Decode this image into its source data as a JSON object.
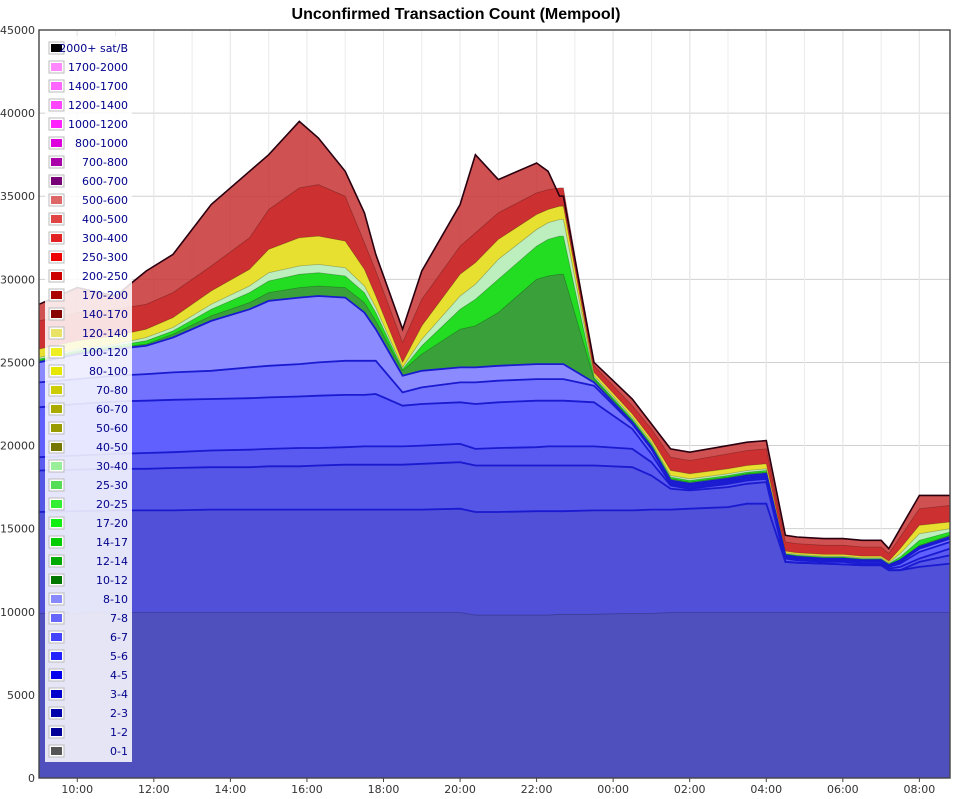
{
  "chart_data": {
    "type": "area",
    "title": "Unconfirmed Transaction Count (Mempool)",
    "xlabel": "",
    "ylabel": "",
    "ylim": [
      0,
      45000
    ],
    "y_ticks": [
      "0",
      "5000",
      "10000",
      "15000",
      "20000",
      "25000",
      "30000",
      "35000",
      "40000",
      "45000"
    ],
    "x_tick_labels": [
      "10:00",
      "12:00",
      "14:00",
      "16:00",
      "18:00",
      "20:00",
      "22:00",
      "00:00",
      "02:00",
      "04:00",
      "06:00",
      "08:00"
    ],
    "grid": true,
    "legend_position": "top-left",
    "legend": [
      {
        "label": "2000+ sat/B",
        "color": "#000000"
      },
      {
        "label": "1700-2000",
        "color": "#ff88ff"
      },
      {
        "label": "1400-1700",
        "color": "#ff66ff"
      },
      {
        "label": "1200-1400",
        "color": "#ff44ff"
      },
      {
        "label": "1000-1200",
        "color": "#ff22ff"
      },
      {
        "label": "800-1000",
        "color": "#dd00dd"
      },
      {
        "label": "700-800",
        "color": "#aa00aa"
      },
      {
        "label": "600-700",
        "color": "#770077"
      },
      {
        "label": "500-600",
        "color": "#dd6666"
      },
      {
        "label": "400-500",
        "color": "#e04444"
      },
      {
        "label": "300-400",
        "color": "#e22222"
      },
      {
        "label": "250-300",
        "color": "#ee0000"
      },
      {
        "label": "200-250",
        "color": "#cc0000"
      },
      {
        "label": "170-200",
        "color": "#aa0000"
      },
      {
        "label": "140-170",
        "color": "#880000"
      },
      {
        "label": "120-140",
        "color": "#e8e266"
      },
      {
        "label": "100-120",
        "color": "#eeee22"
      },
      {
        "label": "80-100",
        "color": "#e6e600"
      },
      {
        "label": "70-80",
        "color": "#cccc00"
      },
      {
        "label": "60-70",
        "color": "#aaaa00"
      },
      {
        "label": "50-60",
        "color": "#999900"
      },
      {
        "label": "40-50",
        "color": "#777700"
      },
      {
        "label": "30-40",
        "color": "#99ee99"
      },
      {
        "label": "25-30",
        "color": "#55dd55"
      },
      {
        "label": "20-25",
        "color": "#33ee33"
      },
      {
        "label": "17-20",
        "color": "#11ee11"
      },
      {
        "label": "14-17",
        "color": "#00cc00"
      },
      {
        "label": "12-14",
        "color": "#00aa00"
      },
      {
        "label": "10-12",
        "color": "#007700"
      },
      {
        "label": "8-10",
        "color": "#8888ff"
      },
      {
        "label": "7-8",
        "color": "#6666ff"
      },
      {
        "label": "6-7",
        "color": "#4444ff"
      },
      {
        "label": "5-6",
        "color": "#2222ff"
      },
      {
        "label": "4-5",
        "color": "#0000ee"
      },
      {
        "label": "3-4",
        "color": "#0000cc"
      },
      {
        "label": "2-3",
        "color": "#0000aa"
      },
      {
        "label": "1-2",
        "color": "#000099"
      },
      {
        "label": "0-1",
        "color": "#555555"
      }
    ],
    "x_hours": [
      9.0,
      10.0,
      11.0,
      11.8,
      12.5,
      13.5,
      14.5,
      15.0,
      15.8,
      16.3,
      17.0,
      17.5,
      17.8,
      18.5,
      19.0,
      20.0,
      20.4,
      21.0,
      22.0,
      22.3,
      22.6,
      22.7,
      23.5,
      24.5,
      25.0,
      25.5,
      26.0,
      27.0,
      27.5,
      28.0,
      28.5,
      28.8,
      29.5,
      30.0,
      30.5,
      31.0,
      31.2,
      31.5,
      32.0,
      32.8
    ],
    "series": [
      {
        "name": "0-1",
        "color": "#4f4fbe",
        "values": [
          9900,
          9900,
          9950,
          9950,
          9950,
          9950,
          9950,
          9950,
          9950,
          9950,
          9950,
          9950,
          9950,
          9950,
          9950,
          9950,
          9800,
          9800,
          9800,
          9800,
          9850,
          9850,
          9850,
          9900,
          9900,
          9950,
          9950,
          9950,
          9950,
          9950,
          9950,
          9950,
          9950,
          9950,
          9950,
          9950,
          9950,
          9950,
          9950,
          9950
        ]
      },
      {
        "name": "1-2",
        "color": "#5050d8",
        "values": [
          16000,
          16050,
          16100,
          16100,
          16100,
          16150,
          16150,
          16150,
          16150,
          16150,
          16150,
          16150,
          16150,
          16150,
          16150,
          16200,
          16000,
          16000,
          16050,
          16050,
          16050,
          16050,
          16100,
          16100,
          16150,
          16150,
          16200,
          16300,
          16500,
          16500,
          13000,
          12950,
          12900,
          12850,
          12800,
          12800,
          12500,
          12500,
          12700,
          12900
        ]
      },
      {
        "name": "2-3",
        "color": "#5555e6",
        "values": [
          18500,
          18550,
          18600,
          18600,
          18650,
          18700,
          18700,
          18750,
          18750,
          18800,
          18850,
          18850,
          18850,
          18850,
          18900,
          19000,
          18800,
          18800,
          18800,
          18800,
          18800,
          18800,
          18800,
          18700,
          18200,
          17400,
          17300,
          17500,
          17700,
          17800,
          13000,
          12950,
          12900,
          12850,
          12800,
          12800,
          12500,
          12500,
          13000,
          13400
        ]
      },
      {
        "name": "3-4",
        "color": "#5a5af0",
        "values": [
          19300,
          19400,
          19500,
          19550,
          19600,
          19700,
          19750,
          19800,
          19850,
          19850,
          19900,
          19950,
          19950,
          19950,
          20000,
          20100,
          19800,
          19850,
          19900,
          19950,
          19950,
          19950,
          19950,
          19800,
          19000,
          17600,
          17400,
          17700,
          17900,
          18000,
          13200,
          13100,
          13000,
          13000,
          12900,
          12900,
          12600,
          12700,
          13200,
          13800
        ]
      },
      {
        "name": "4-5",
        "color": "#6060ff",
        "values": [
          22300,
          22500,
          22650,
          22700,
          22750,
          22800,
          22850,
          22900,
          22950,
          23000,
          23050,
          23050,
          23100,
          22400,
          22500,
          22600,
          22500,
          22600,
          22700,
          22700,
          22700,
          22700,
          22600,
          21000,
          19500,
          17700,
          17500,
          17800,
          18000,
          18100,
          13300,
          13200,
          13100,
          13100,
          13000,
          13000,
          12700,
          12900,
          13600,
          14200
        ]
      },
      {
        "name": "6-7",
        "color": "#7272ff",
        "values": [
          23800,
          24000,
          24200,
          24300,
          24400,
          24500,
          24700,
          24800,
          24900,
          25000,
          25100,
          25100,
          25100,
          23200,
          23500,
          23800,
          23800,
          23900,
          24000,
          24000,
          24000,
          24000,
          23600,
          21300,
          19800,
          17800,
          17600,
          17900,
          18100,
          18200,
          13350,
          13250,
          13150,
          13150,
          13050,
          13050,
          12750,
          13000,
          13800,
          14400
        ]
      },
      {
        "name": "8-10",
        "color": "#8b8bff",
        "values": [
          25000,
          25500,
          25800,
          26000,
          26500,
          27500,
          28200,
          28700,
          28900,
          29000,
          28900,
          28000,
          27000,
          24200,
          24500,
          24700,
          24700,
          24800,
          24900,
          24900,
          24900,
          24900,
          23800,
          21400,
          19900,
          17900,
          17700,
          18000,
          18200,
          18300,
          13400,
          13300,
          13200,
          13200,
          13100,
          13100,
          12800,
          13100,
          13900,
          14500
        ]
      },
      {
        "name": "10-12",
        "color": "#3aa03a",
        "values": [
          25100,
          25600,
          25900,
          26100,
          26700,
          27800,
          28600,
          29200,
          29500,
          29600,
          29500,
          28600,
          27500,
          24500,
          25500,
          27000,
          27200,
          28000,
          30000,
          30200,
          30300,
          30300,
          24000,
          21500,
          20000,
          18000,
          17800,
          18100,
          18300,
          18400,
          13450,
          13350,
          13250,
          13250,
          13150,
          13150,
          12850,
          13150,
          14000,
          14600
        ]
      },
      {
        "name": "14-17",
        "color": "#22dd22",
        "values": [
          25200,
          25700,
          26000,
          26300,
          26900,
          28200,
          29200,
          29900,
          30300,
          30400,
          30200,
          29200,
          28000,
          24600,
          26000,
          28200,
          28800,
          30000,
          32000,
          32400,
          32600,
          32600,
          24100,
          21600,
          20100,
          18100,
          17900,
          18200,
          18400,
          18500,
          13500,
          13400,
          13300,
          13300,
          13200,
          13200,
          12900,
          13300,
          14300,
          14800
        ]
      },
      {
        "name": "30-40",
        "color": "#bdeebd",
        "values": [
          25300,
          25800,
          26100,
          26500,
          27100,
          28500,
          29600,
          30400,
          30800,
          30900,
          30700,
          29600,
          28300,
          24700,
          26400,
          29000,
          29700,
          31200,
          33000,
          33400,
          33600,
          33600,
          24200,
          21700,
          20200,
          18200,
          18000,
          18300,
          18500,
          18600,
          13550,
          13450,
          13350,
          13350,
          13250,
          13250,
          12950,
          13500,
          14700,
          15000
        ]
      },
      {
        "name": "80-100",
        "color": "#e8e030",
        "values": [
          25800,
          26300,
          26600,
          27000,
          27700,
          29300,
          30600,
          31800,
          32500,
          32600,
          32300,
          30600,
          29000,
          25000,
          27200,
          30300,
          31000,
          32400,
          33900,
          34200,
          34400,
          34400,
          24400,
          21900,
          20400,
          18500,
          18300,
          18600,
          18800,
          18900,
          13650,
          13550,
          13450,
          13450,
          13350,
          13350,
          13050,
          13800,
          15200,
          15400
        ]
      },
      {
        "name": "140-170",
        "color": "#cc3030",
        "values": [
          27500,
          28000,
          28200,
          28500,
          29200,
          30800,
          32500,
          34200,
          35500,
          35700,
          35000,
          32200,
          30500,
          26200,
          28800,
          32000,
          32800,
          34000,
          35200,
          35400,
          35500,
          35500,
          24800,
          22400,
          21000,
          19300,
          19100,
          19500,
          19700,
          19800,
          14200,
          14100,
          14000,
          14000,
          13900,
          13900,
          13500,
          14500,
          16200,
          16400
        ]
      }
    ],
    "peak_envelope": [
      28500,
      29500,
      29000,
      30500,
      31500,
      34500,
      36500,
      37500,
      39500,
      38500,
      36500,
      34000,
      31500,
      27000,
      30500,
      34500,
      37500,
      36000,
      37000,
      36500,
      35000,
      35000,
      25000,
      22800,
      21300,
      19800,
      19600,
      20000,
      20200,
      20300,
      14600,
      14500,
      14400,
      14400,
      14300,
      14300,
      13800,
      15000,
      17000,
      17000
    ]
  }
}
